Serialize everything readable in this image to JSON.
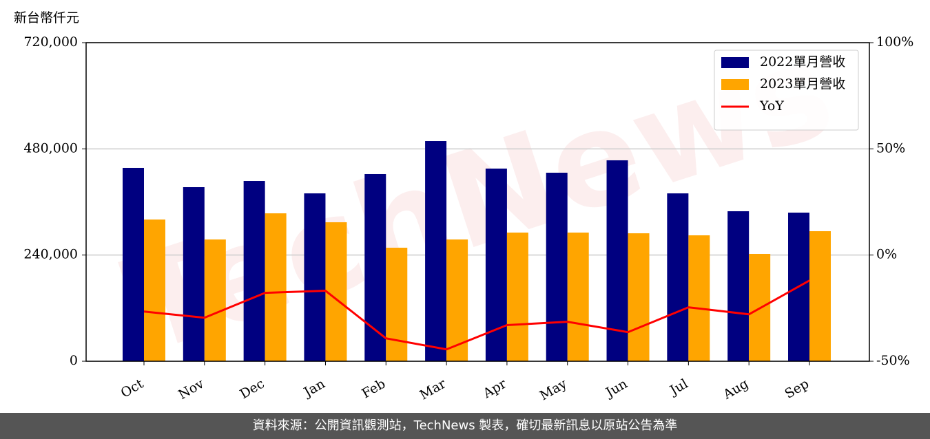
{
  "chart_data": {
    "type": "bar-line",
    "y_label": "新台幣仟元",
    "watermark": "TechNews",
    "categories": [
      "Oct",
      "Nov",
      "Dec",
      "Jan",
      "Feb",
      "Mar",
      "Apr",
      "May",
      "Jun",
      "Jul",
      "Aug",
      "Sep"
    ],
    "series": [
      {
        "name": "2022單月營收",
        "color": "#000080",
        "type": "bar",
        "values": [
          437000,
          393400,
          407400,
          379400,
          423000,
          497600,
          435400,
          426100,
          454100,
          379400,
          339000,
          335900
        ]
      },
      {
        "name": "2023單月營收",
        "color": "#ffa500",
        "type": "bar",
        "values": [
          320300,
          275200,
          334300,
          314100,
          256600,
          275200,
          290800,
          290800,
          289200,
          284600,
          242600,
          293900
        ]
      },
      {
        "name": "YoY",
        "color": "#ff0000",
        "type": "line",
        "axis": "y2",
        "values": [
          -26.6,
          -29.5,
          -17.8,
          -16.8,
          -39.2,
          -44.4,
          -33.0,
          -31.4,
          -36.3,
          -24.6,
          -27.9,
          -12.0
        ]
      }
    ],
    "ylim": [
      0,
      720000
    ],
    "yticks": [
      0,
      {
        "value": 240000,
        "label": "240,000"
      },
      {
        "value": 480000,
        "label": "480,000"
      },
      {
        "value": 720000,
        "label": "720,000"
      }
    ],
    "y2lim": [
      -50,
      100
    ],
    "y2ticks": [
      {
        "value": -50,
        "label": "-50%"
      },
      {
        "value": 0,
        "label": "0%"
      },
      {
        "value": 50,
        "label": "50%"
      },
      {
        "value": 100,
        "label": "100%"
      }
    ],
    "grid": true,
    "legend": "upper right"
  },
  "footer": "資料來源：公開資訊觀測站，TechNews 製表，確切最新訊息以原站公告為準"
}
